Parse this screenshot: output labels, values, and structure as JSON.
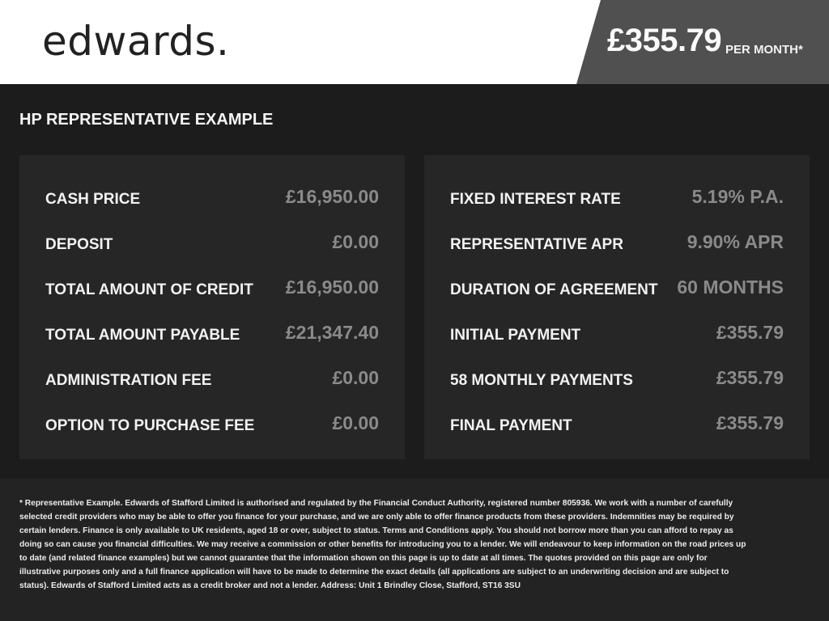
{
  "header": {
    "logo": "edwards.",
    "price": "£355.79",
    "per_month": "PER MONTH*"
  },
  "section_title": "HP REPRESENTATIVE EXAMPLE",
  "left": [
    {
      "label": "CASH PRICE",
      "value": "£16,950.00"
    },
    {
      "label": "DEPOSIT",
      "value": "£0.00"
    },
    {
      "label": "TOTAL AMOUNT OF CREDIT",
      "value": "£16,950.00"
    },
    {
      "label": "TOTAL AMOUNT PAYABLE",
      "value": "£21,347.40"
    },
    {
      "label": "ADMINISTRATION FEE",
      "value": "£0.00"
    },
    {
      "label": "OPTION TO PURCHASE FEE",
      "value": "£0.00"
    }
  ],
  "right": [
    {
      "label": "FIXED INTEREST RATE",
      "value": "5.19% P.A."
    },
    {
      "label": "REPRESENTATIVE APR",
      "value": "9.90% APR"
    },
    {
      "label": "DURATION OF AGREEMENT",
      "value": "60 MONTHS"
    },
    {
      "label": "INITIAL PAYMENT",
      "value": "£355.79"
    },
    {
      "label": "58 MONTHLY PAYMENTS",
      "value": "£355.79"
    },
    {
      "label": "FINAL PAYMENT",
      "value": "£355.79"
    }
  ],
  "disclaimer": "* Representative Example. Edwards of Stafford Limited is authorised and regulated by the Financial Conduct Authority, registered number 805936. We work with a number of carefully selected credit providers who may be able to offer you finance for your purchase, and we are only able to offer finance products from these providers. Indemnities may be required by certain lenders. Finance is only available to UK residents, aged 18 or over, subject to status. Terms and Conditions apply. You should not borrow more than you can afford to repay as doing so can cause you financial difficulties. We may receive a commission or other benefits for introducing you to a lender. We will endeavour to keep information on the road prices up to date (and related finance examples) but we cannot guarantee that the information shown on this page is up to date at all times. The quotes provided on this page are only for illustrative purposes only and a full finance application will have to be made to determine the exact details (all applications are subject to an underwriting decision and are subject to status). Edwards of Stafford Limited acts as a credit broker and not a lender. Address: Unit 1 Brindley Close, Stafford, ST16 3SU"
}
